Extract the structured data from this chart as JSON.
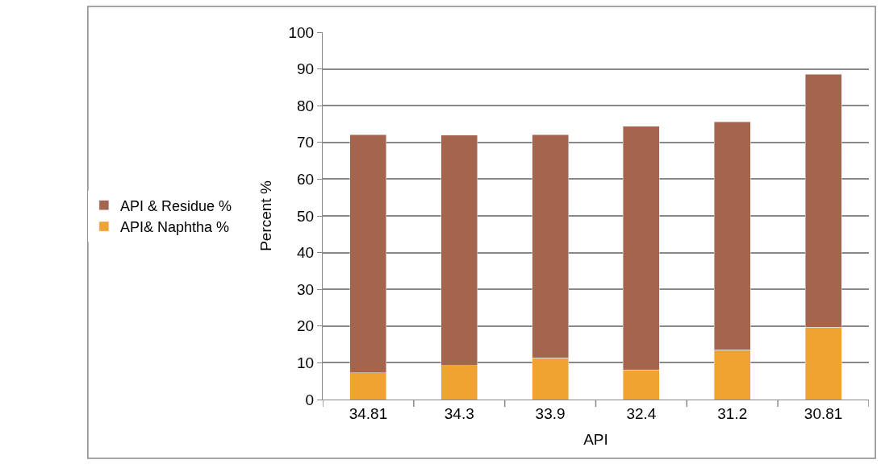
{
  "chart_data": {
    "type": "bar",
    "stacked": true,
    "xlabel": "API",
    "ylabel": "Percent %",
    "categories": [
      "34.81",
      "34.3",
      "33.9",
      "32.4",
      "31.2",
      "30.81"
    ],
    "series": [
      {
        "name": "API& Naphtha %",
        "color": "#f0a330",
        "values": [
          7.3,
          9.3,
          11.4,
          8.1,
          13.5,
          19.7
        ]
      },
      {
        "name": "API & Residue %",
        "color": "#a5644d",
        "values": [
          64.8,
          62.7,
          60.7,
          66.3,
          62.1,
          68.8
        ]
      }
    ],
    "ylim": [
      0,
      100
    ],
    "yticks": [
      0,
      10,
      20,
      30,
      40,
      50,
      60,
      70,
      80,
      90,
      100
    ],
    "grid": "y",
    "legend": "left"
  }
}
